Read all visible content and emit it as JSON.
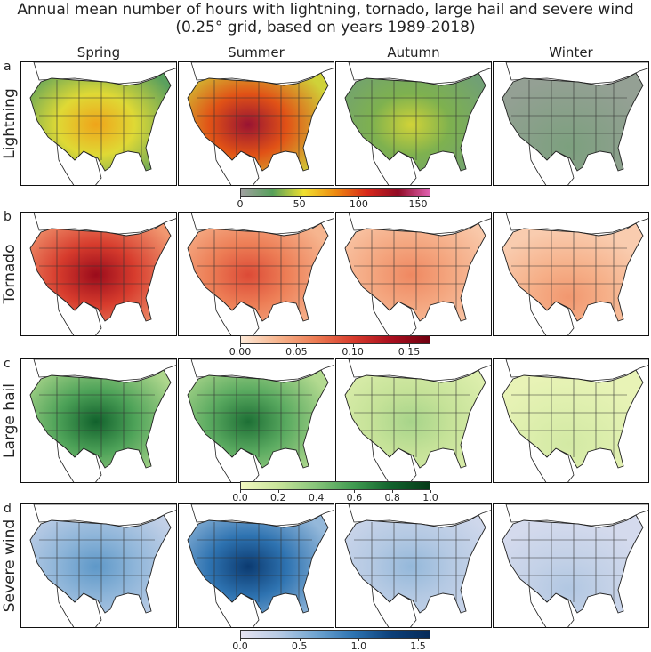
{
  "title": {
    "line1": "Annual mean number of hours with lightning, tornado, large hail and severe wind",
    "line2": "(0.25° grid, based on years 1989-2018)"
  },
  "seasons": [
    "Spring",
    "Summer",
    "Autumn",
    "Winter"
  ],
  "rows": [
    {
      "letter": "a",
      "label": "Lightning",
      "colors": [
        "#a0a0a0",
        "#56a05a",
        "#f0e030",
        "#ee8a10",
        "#d8281a",
        "#900a24",
        "#e060b0"
      ],
      "ticks": [
        "0",
        "50",
        "100",
        "150"
      ],
      "intensity": [
        0.45,
        0.85,
        0.3,
        0.08
      ]
    },
    {
      "letter": "b",
      "label": "Tornado",
      "colors": [
        "#fde8d6",
        "#f6b38c",
        "#ec7a52",
        "#d63a2c",
        "#a80e1e",
        "#700010"
      ],
      "ticks": [
        "0.00",
        "0.05",
        "0.10",
        "0.15"
      ],
      "intensity": [
        0.85,
        0.55,
        0.35,
        0.3
      ]
    },
    {
      "letter": "c",
      "label": "Large hail",
      "colors": [
        "#f3f8c0",
        "#c8e49a",
        "#86c47a",
        "#3f9a50",
        "#11612c",
        "#063a18"
      ],
      "ticks": [
        "0.0",
        "0.2",
        "0.4",
        "0.6",
        "0.8",
        "1.0"
      ],
      "intensity": [
        0.8,
        0.75,
        0.3,
        0.15
      ]
    },
    {
      "letter": "d",
      "label": "Severe wind",
      "colors": [
        "#e6e4f2",
        "#b8cbe4",
        "#6fa4d0",
        "#2c72b0",
        "#0c3f78",
        "#062a58"
      ],
      "ticks": [
        "0.0",
        "0.5",
        "1.0",
        "1.5"
      ],
      "intensity": [
        0.45,
        0.85,
        0.3,
        0.22
      ]
    }
  ]
}
